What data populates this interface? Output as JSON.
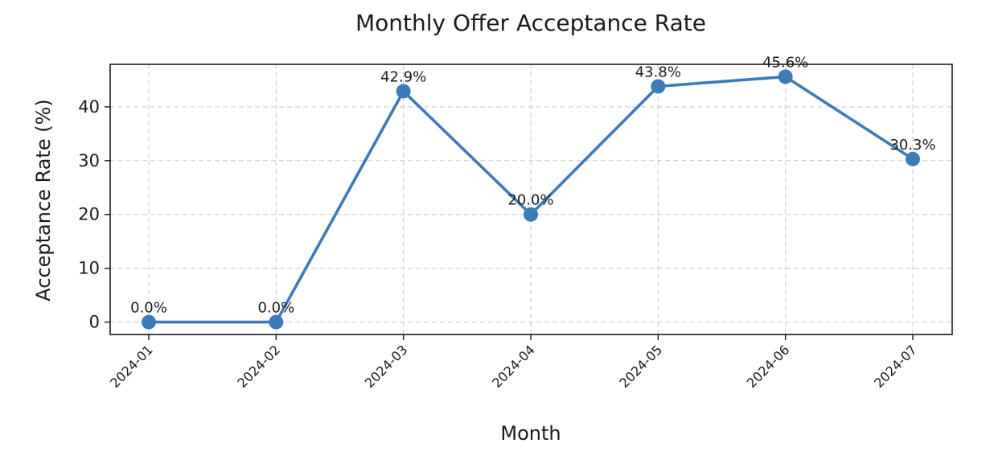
{
  "chart_data": {
    "type": "line",
    "title": "Monthly Offer Acceptance Rate",
    "xlabel": "Month",
    "ylabel": "Acceptance Rate (%)",
    "categories": [
      "2024-01",
      "2024-02",
      "2024-03",
      "2024-04",
      "2024-05",
      "2024-06",
      "2024-07"
    ],
    "values": [
      0.0,
      0.0,
      42.9,
      20.0,
      43.8,
      45.6,
      30.3
    ],
    "data_labels": [
      "0.0%",
      "0.0%",
      "42.9%",
      "20.0%",
      "43.8%",
      "45.6%",
      "30.3%"
    ],
    "y_ticks": [
      0,
      10,
      20,
      30,
      40
    ],
    "ylim": [
      -2.3,
      47.9
    ],
    "grid": true,
    "grid_style": "dashed",
    "line_color": "#3d7ab8",
    "marker": "circle",
    "x_tick_rotation": "45-degrees"
  }
}
